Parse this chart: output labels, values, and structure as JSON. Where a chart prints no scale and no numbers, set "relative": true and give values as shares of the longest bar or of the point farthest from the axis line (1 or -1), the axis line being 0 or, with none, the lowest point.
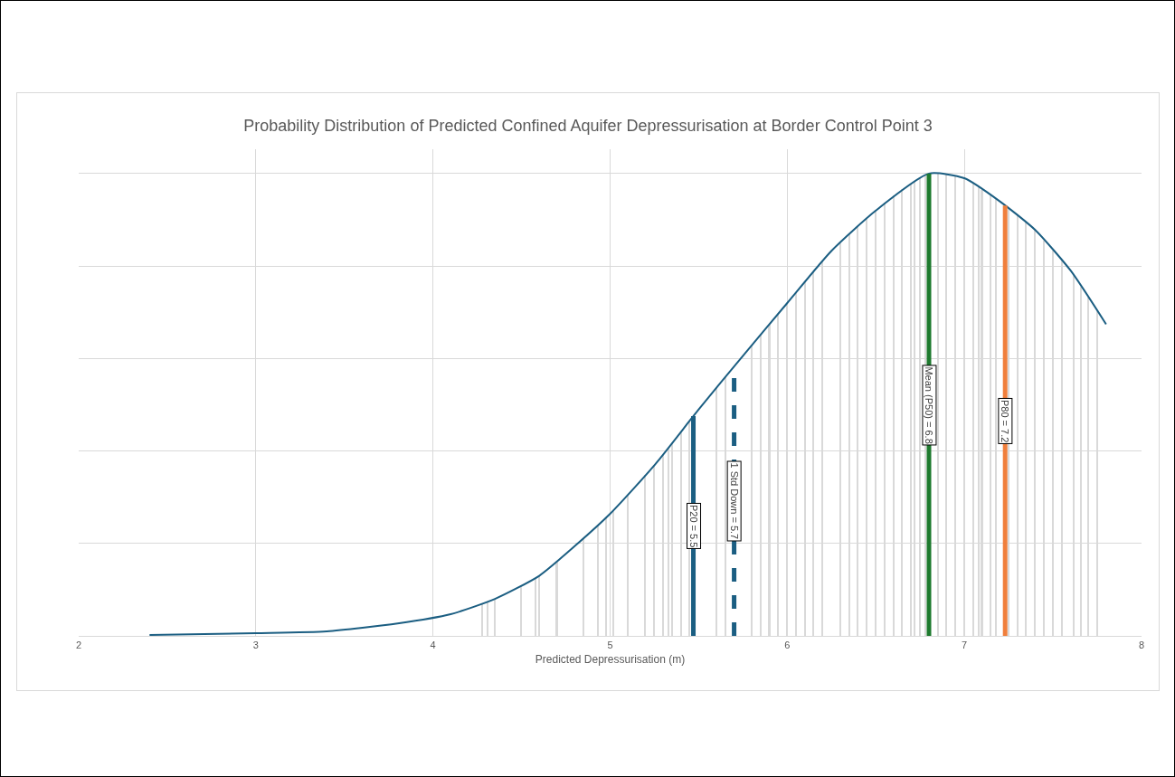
{
  "chart_data": {
    "type": "line",
    "title": "Probability Distribution of Predicted Confined Aquifer Depressurisation at Border Control Point 3",
    "xlabel": "Predicted Depressurisation (m)",
    "relative": true,
    "xlim": [
      2,
      8
    ],
    "xticks": [
      2,
      3,
      4,
      5,
      6,
      7,
      8
    ],
    "grid": true,
    "series": [
      {
        "type": "bar",
        "color": "#d9d9d9",
        "x": [
          4.28,
          4.31,
          4.35,
          4.5,
          4.58,
          4.6,
          4.7,
          4.85,
          4.93,
          4.98,
          5.02,
          5.1,
          5.2,
          5.25,
          5.3,
          5.33,
          5.35,
          5.4,
          5.45,
          5.6,
          5.65,
          5.8,
          5.85,
          5.9,
          5.95,
          6.0,
          6.05,
          6.1,
          6.15,
          6.2,
          6.3,
          6.35,
          6.4,
          6.45,
          6.5,
          6.55,
          6.6,
          6.65,
          6.7,
          6.72,
          6.75,
          6.78,
          6.85,
          6.9,
          6.95,
          7.0,
          7.05,
          7.08,
          7.1,
          7.15,
          7.18,
          7.25,
          7.3,
          7.35,
          7.4,
          7.45,
          7.5,
          7.55,
          7.62,
          7.66,
          7.7,
          7.75
        ],
        "values": [
          0.07,
          0.075,
          0.08,
          0.11,
          0.126,
          0.13,
          0.16,
          0.21,
          0.24,
          0.257,
          0.272,
          0.306,
          0.348,
          0.369,
          0.393,
          0.407,
          0.417,
          0.442,
          0.466,
          0.537,
          0.56,
          0.629,
          0.652,
          0.674,
          0.697,
          0.72,
          0.743,
          0.765,
          0.788,
          0.81,
          0.85,
          0.868,
          0.885,
          0.903,
          0.92,
          0.937,
          0.953,
          0.967,
          0.978,
          0.983,
          0.99,
          0.997,
          0.999,
          0.997,
          0.994,
          0.99,
          0.978,
          0.97,
          0.965,
          0.952,
          0.946,
          0.925,
          0.909,
          0.894,
          0.878,
          0.856,
          0.834,
          0.812,
          0.778,
          0.755,
          0.732,
          0.703
        ]
      },
      {
        "color": "#1b5e82",
        "x": [
          2.4,
          3.0,
          3.4,
          3.8,
          4.1,
          4.35,
          4.6,
          4.8,
          5.0,
          5.25,
          5.5,
          5.75,
          6.0,
          6.25,
          6.5,
          6.8,
          7.0,
          7.2,
          7.4,
          7.6,
          7.8
        ],
        "values": [
          0.002,
          0.006,
          0.01,
          0.027,
          0.047,
          0.08,
          0.13,
          0.194,
          0.264,
          0.369,
          0.49,
          0.606,
          0.72,
          0.833,
          0.92,
          1,
          0.99,
          0.94,
          0.878,
          0.79,
          0.674
        ]
      }
    ],
    "ref_lines": [
      {
        "axis": "x",
        "value": 5.47,
        "label": "P20 = 5.5",
        "color": "#1b5e82",
        "line_style": "solid"
      },
      {
        "axis": "x",
        "value": 5.7,
        "label": "1 Std Down = 5.7",
        "color": "#1b5e82",
        "line_style": "dashed"
      },
      {
        "axis": "x",
        "value": 6.8,
        "label": "Mean (P50) = 6.8",
        "color": "#1e7a2e",
        "line_style": "solid"
      },
      {
        "axis": "x",
        "value": 7.23,
        "label": "P80 = 7.2",
        "color": "#f07f3c",
        "line_style": "solid"
      }
    ]
  }
}
